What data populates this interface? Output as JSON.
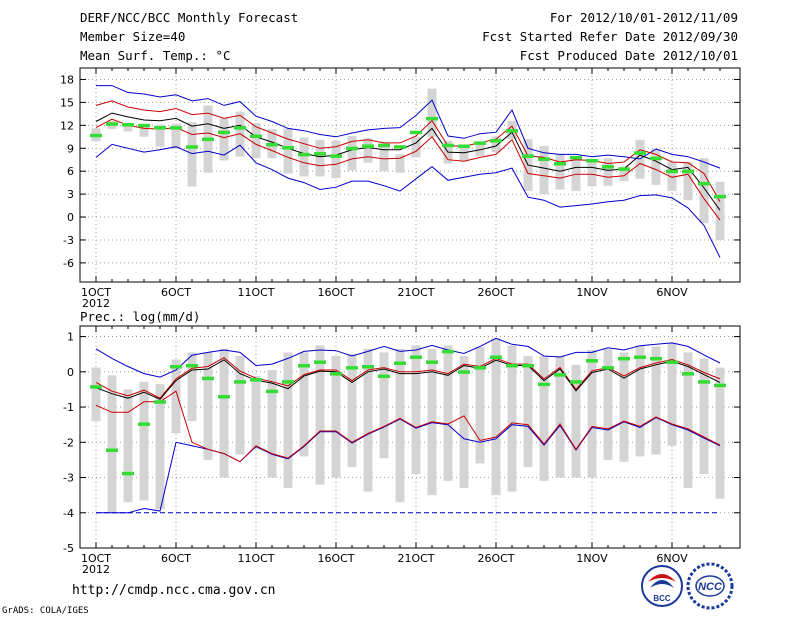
{
  "header": {
    "title": "DERF/NCC/BCC Monthly Forecast",
    "member_size": "Member Size=40",
    "variable": "Mean Surf. Temp.: °C",
    "for_period": "For 2012/10/01-2012/11/09",
    "fcst_started": "Fcst Started Refer Date 2012/09/30",
    "fcst_produced": "Fcst Produced Date 2012/10/01"
  },
  "precip_label": "Prec.: log(mm/d)",
  "footer": {
    "url": "http://cmdp.ncc.cma.gov.cn",
    "credit": "GrADS: COLA/IGES",
    "logo_bcc": "BCC",
    "logo_ncc": "NCC"
  },
  "colors": {
    "max_min": "#0000cc",
    "mean_sd": "#cc0000",
    "mean": "#000000",
    "spread": "#d4d4d4",
    "median": "#33dd33"
  },
  "chart_data": [
    {
      "type": "box-plume",
      "title": "Mean Surf. Temp.: °C",
      "days": 40,
      "x_tick_labels": [
        "1OCT",
        "6OCT",
        "11OCT",
        "16OCT",
        "21OCT",
        "26OCT",
        "1NOV",
        "6NOV"
      ],
      "x_tick_days": [
        1,
        6,
        11,
        16,
        21,
        26,
        32,
        37
      ],
      "x_year_label": "2012",
      "y_ticks": [
        -6,
        -3,
        0,
        3,
        6,
        9,
        12,
        15,
        18
      ],
      "ylim": [
        -8.5,
        19.5
      ],
      "series": [
        {
          "name": "max",
          "values": [
            17.2,
            17.2,
            16.3,
            16.1,
            15.7,
            16.0,
            15.2,
            15.5,
            14.6,
            15.1,
            13.2,
            12.5,
            11.6,
            11.3,
            10.8,
            10.5,
            11.0,
            11.4,
            11.6,
            11.7,
            13.3,
            15.3,
            10.6,
            10.3,
            10.9,
            11.1,
            14.0,
            9.0,
            8.4,
            8.2,
            8.2,
            7.9,
            8.1,
            7.9,
            7.6,
            8.9,
            8.2,
            7.9,
            7.2,
            6.4
          ]
        },
        {
          "name": "mean_plus_sd",
          "values": [
            14.6,
            15.2,
            14.4,
            14.0,
            13.8,
            14.2,
            13.4,
            13.6,
            12.9,
            13.3,
            11.8,
            11.0,
            10.2,
            9.6,
            9.0,
            9.2,
            9.9,
            10.1,
            9.7,
            9.7,
            10.6,
            12.6,
            9.3,
            9.3,
            9.7,
            10.2,
            11.9,
            8.0,
            7.8,
            7.2,
            7.5,
            7.4,
            7.0,
            7.2,
            8.8,
            8.2,
            7.2,
            7.1,
            5.7,
            2.0
          ]
        },
        {
          "name": "mean",
          "values": [
            12.5,
            13.6,
            13.1,
            12.7,
            12.6,
            12.9,
            11.9,
            12.2,
            11.6,
            12.0,
            10.5,
            9.8,
            9.0,
            8.3,
            7.9,
            8.1,
            8.8,
            9.1,
            8.8,
            8.8,
            9.7,
            11.6,
            8.5,
            8.4,
            8.8,
            9.3,
            11.1,
            6.8,
            6.4,
            6.0,
            6.5,
            6.5,
            6.1,
            6.3,
            8.1,
            7.3,
            6.2,
            6.5,
            3.8,
            0.9
          ]
        },
        {
          "name": "mean_minus_sd",
          "values": [
            11.7,
            12.8,
            12.0,
            11.6,
            11.5,
            11.7,
            10.8,
            11.0,
            10.4,
            10.9,
            9.5,
            8.7,
            7.8,
            7.1,
            6.7,
            6.9,
            7.6,
            7.9,
            7.6,
            7.7,
            8.6,
            10.5,
            7.5,
            7.3,
            7.8,
            8.2,
            10.1,
            5.7,
            5.4,
            5.1,
            5.6,
            5.6,
            5.2,
            5.4,
            7.0,
            6.2,
            5.2,
            5.6,
            2.4,
            -0.4
          ]
        },
        {
          "name": "min",
          "values": [
            7.8,
            9.5,
            9.0,
            8.5,
            8.8,
            9.2,
            8.3,
            8.6,
            8.1,
            9.4,
            7.1,
            6.2,
            5.1,
            4.5,
            3.6,
            3.9,
            4.7,
            4.7,
            4.1,
            3.4,
            5.0,
            6.6,
            4.8,
            5.2,
            5.6,
            5.8,
            6.4,
            2.6,
            2.2,
            1.3,
            1.5,
            1.7,
            2.0,
            2.2,
            2.8,
            2.9,
            2.5,
            1.2,
            -1.1,
            -5.3
          ]
        },
        {
          "name": "median",
          "values": [
            10.7,
            12.2,
            12.1,
            12.0,
            11.7,
            11.7,
            9.2,
            10.2,
            11.1,
            11.7,
            10.6,
            9.5,
            9.1,
            8.2,
            8.3,
            8.0,
            9.0,
            9.3,
            9.4,
            9.2,
            11.1,
            12.9,
            9.4,
            9.3,
            9.7,
            10.0,
            11.3,
            8.0,
            7.6,
            7.0,
            7.8,
            7.4,
            6.6,
            6.3,
            8.4,
            7.7,
            6.0,
            6.0,
            4.4,
            2.7
          ]
        },
        {
          "name": "box_high",
          "values": [
            11.6,
            12.6,
            12.1,
            12.1,
            12.1,
            12.2,
            12.4,
            14.6,
            12.9,
            13.8,
            12.3,
            11.5,
            11.6,
            10.4,
            10.1,
            10.0,
            10.6,
            10.3,
            9.6,
            8.2,
            10.5,
            16.8,
            10.0,
            9.1,
            9.8,
            10.5,
            12.6,
            10.2,
            9.3,
            8.2,
            7.5,
            7.3,
            7.7,
            6.6,
            10.1,
            8.9,
            7.2,
            7.2,
            7.7,
            4.6
          ]
        },
        {
          "name": "box_low",
          "values": [
            9.9,
            11.5,
            11.2,
            10.5,
            9.2,
            8.9,
            4.0,
            5.8,
            7.4,
            7.9,
            7.7,
            7.7,
            5.7,
            5.3,
            5.3,
            5.1,
            6.1,
            7.1,
            6.0,
            5.8,
            7.8,
            10.5,
            7.0,
            7.4,
            8.0,
            8.5,
            10.2,
            3.4,
            3.0,
            3.6,
            3.4,
            4.0,
            4.1,
            4.7,
            5.0,
            4.2,
            3.4,
            2.2,
            -0.8,
            -3.0
          ]
        }
      ]
    },
    {
      "type": "box-plume",
      "title": "Prec.: log(mm/d)",
      "days": 40,
      "x_tick_labels": [
        "1OCT",
        "6OCT",
        "11OCT",
        "16OCT",
        "21OCT",
        "26OCT",
        "1NOV",
        "6NOV"
      ],
      "x_tick_days": [
        1,
        6,
        11,
        16,
        21,
        26,
        32,
        37
      ],
      "x_year_label": "2012",
      "y_ticks": [
        -5,
        -4,
        -3,
        -2,
        -1,
        0,
        1
      ],
      "ylim": [
        -5,
        1.3
      ],
      "series": [
        {
          "name": "max",
          "values": [
            0.65,
            0.38,
            0.15,
            -0.05,
            -0.15,
            0.05,
            0.47,
            0.55,
            0.62,
            0.55,
            0.18,
            0.22,
            0.38,
            0.58,
            0.62,
            0.6,
            0.45,
            0.58,
            0.72,
            0.58,
            0.62,
            0.75,
            0.62,
            0.52,
            0.72,
            0.95,
            0.78,
            0.72,
            0.45,
            0.42,
            0.55,
            0.55,
            0.68,
            0.62,
            0.74,
            0.78,
            0.82,
            0.72,
            0.48,
            0.25
          ]
        },
        {
          "name": "mean_plus_sd",
          "values": [
            -0.3,
            -0.55,
            -0.68,
            -0.52,
            -0.75,
            -0.2,
            0.1,
            0.15,
            0.4,
            0.02,
            -0.18,
            -0.28,
            -0.4,
            -0.08,
            0.05,
            0.05,
            -0.25,
            0.05,
            0.12,
            0.0,
            0.0,
            0.05,
            -0.05,
            0.22,
            0.15,
            0.38,
            0.22,
            0.22,
            -0.2,
            0.12,
            -0.5,
            0.03,
            0.12,
            -0.12,
            0.12,
            0.25,
            0.35,
            0.2,
            -0.02,
            -0.2
          ]
        },
        {
          "name": "mean",
          "values": [
            -0.45,
            -0.62,
            -0.75,
            -0.58,
            -0.78,
            -0.25,
            0.05,
            0.08,
            0.34,
            -0.05,
            -0.24,
            -0.32,
            -0.48,
            -0.12,
            0.02,
            0.0,
            -0.3,
            0.0,
            0.08,
            -0.05,
            -0.05,
            0.0,
            -0.1,
            0.18,
            0.1,
            0.33,
            0.18,
            0.18,
            -0.25,
            0.08,
            -0.54,
            -0.02,
            0.08,
            -0.18,
            0.08,
            0.2,
            0.3,
            0.15,
            -0.08,
            -0.3
          ]
        },
        {
          "name": "mean_minus_sd",
          "values": [
            -0.95,
            -1.15,
            -1.15,
            -0.85,
            -0.85,
            -0.55,
            -2.0,
            -2.2,
            -2.32,
            -2.55,
            -2.1,
            -2.32,
            -2.45,
            -2.1,
            -1.68,
            -1.68,
            -2.0,
            -1.75,
            -1.55,
            -1.32,
            -1.58,
            -1.42,
            -1.48,
            -1.25,
            -1.95,
            -1.85,
            -1.45,
            -1.5,
            -2.05,
            -1.48,
            -2.2,
            -1.55,
            -1.62,
            -1.4,
            -1.55,
            -1.28,
            -1.48,
            -1.62,
            -1.85,
            -2.08
          ]
        },
        {
          "name": "min",
          "values": [
            -4.0,
            -4.0,
            -4.0,
            -3.88,
            -3.95,
            -2.0,
            -2.1,
            -2.2,
            -2.32,
            -2.55,
            -2.12,
            -2.34,
            -2.47,
            -2.12,
            -1.7,
            -1.7,
            -2.02,
            -1.77,
            -1.57,
            -1.34,
            -1.6,
            -1.44,
            -1.5,
            -1.9,
            -2.0,
            -1.9,
            -1.5,
            -1.55,
            -2.08,
            -1.52,
            -2.22,
            -1.58,
            -1.65,
            -1.42,
            -1.58,
            -1.3,
            -1.5,
            -1.65,
            -1.88,
            -2.1
          ]
        },
        {
          "name": "median",
          "values": [
            -0.42,
            -2.22,
            -2.88,
            -1.48,
            -0.85,
            0.15,
            0.18,
            -0.18,
            -0.7,
            -0.28,
            -0.22,
            -0.55,
            -0.28,
            0.18,
            0.28,
            -0.05,
            0.12,
            0.15,
            -0.12,
            0.25,
            0.42,
            0.28,
            0.58,
            0.0,
            0.12,
            0.42,
            0.18,
            0.18,
            -0.35,
            -0.08,
            -0.28,
            0.32,
            0.12,
            0.38,
            0.42,
            0.38,
            0.28,
            -0.05,
            -0.28,
            -0.38
          ]
        },
        {
          "name": "box_high",
          "values": [
            0.12,
            -0.1,
            -0.5,
            -0.28,
            -0.35,
            0.35,
            0.55,
            0.55,
            0.65,
            0.45,
            -0.12,
            0.05,
            0.55,
            0.55,
            0.75,
            0.45,
            0.5,
            0.65,
            0.55,
            0.65,
            0.75,
            0.65,
            0.75,
            0.45,
            0.7,
            0.95,
            0.75,
            0.45,
            0.45,
            0.45,
            0.2,
            0.62,
            0.65,
            0.55,
            0.75,
            0.72,
            0.82,
            0.55,
            0.38,
            0.12
          ]
        },
        {
          "name": "box_low",
          "values": [
            -1.4,
            -4.0,
            -3.7,
            -3.65,
            -3.9,
            -1.75,
            -1.4,
            -2.5,
            -3.0,
            -2.35,
            -2.2,
            -3.0,
            -3.3,
            -2.4,
            -3.2,
            -3.0,
            -2.7,
            -3.4,
            -2.45,
            -3.7,
            -2.9,
            -3.5,
            -3.1,
            -3.3,
            -2.6,
            -3.5,
            -3.4,
            -2.7,
            -3.1,
            -3.0,
            -3.0,
            -3.0,
            -2.5,
            -2.55,
            -2.4,
            -2.35,
            -2.1,
            -3.3,
            -2.9,
            -3.6
          ]
        }
      ]
    }
  ]
}
